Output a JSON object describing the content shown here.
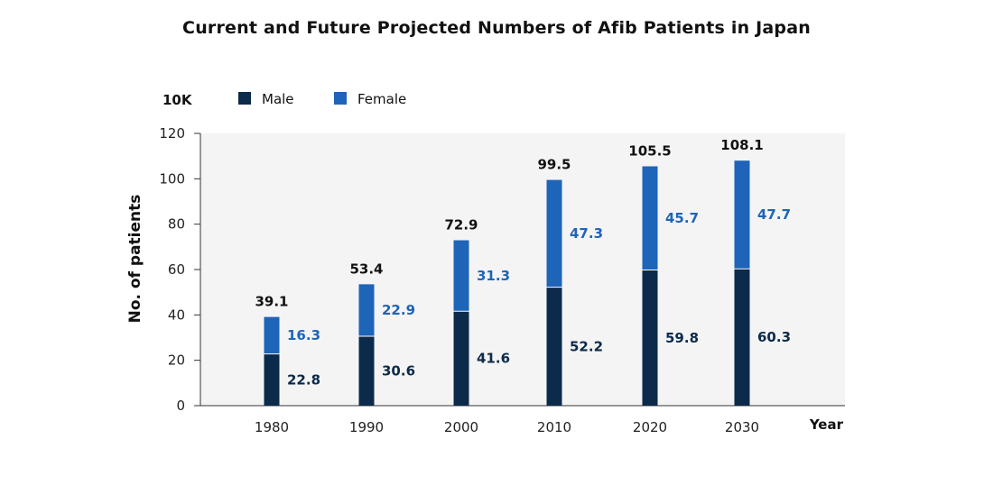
{
  "chart_data": {
    "type": "bar",
    "stacked": true,
    "title": "Current and Future Projected Numbers of Afib Patients in Japan",
    "unit_label": "10K",
    "ylabel": "No. of patients",
    "xlabel": "Year",
    "ylim": [
      0,
      120
    ],
    "yticks": [
      0,
      20,
      40,
      60,
      80,
      100,
      120
    ],
    "categories": [
      "1980",
      "1990",
      "2000",
      "2010",
      "2020",
      "2030"
    ],
    "totals": [
      "39.1",
      "53.4",
      "72.9",
      "99.5",
      "105.5",
      "108.1"
    ],
    "series": [
      {
        "name": "Male",
        "color": "#0c2a4a",
        "values": [
          22.8,
          30.6,
          41.6,
          52.2,
          59.8,
          60.3
        ]
      },
      {
        "name": "Female",
        "color": "#1e64b8",
        "values": [
          16.3,
          22.9,
          31.3,
          47.3,
          45.7,
          47.7
        ]
      }
    ],
    "legend": "top-left",
    "plot_background": "#f4f4f4"
  }
}
